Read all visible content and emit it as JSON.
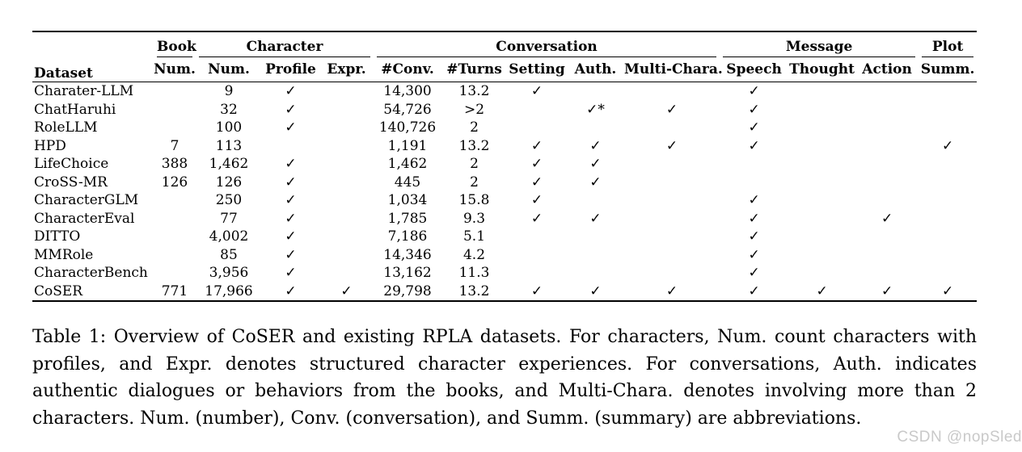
{
  "table": {
    "corner_header": "Dataset",
    "group_headers": [
      {
        "label": "Book",
        "span": 1
      },
      {
        "label": "Character",
        "span": 3
      },
      {
        "label": "Conversation",
        "span": 5
      },
      {
        "label": "Message",
        "span": 3
      },
      {
        "label": "Plot",
        "span": 1
      }
    ],
    "sub_headers": [
      "Num.",
      "Num.",
      "Profile",
      "Expr.",
      "#Conv.",
      "#Turns",
      "Setting",
      "Auth.",
      "Multi-Chara.",
      "Speech",
      "Thought",
      "Action",
      "Summ."
    ],
    "check_glyph": "✓",
    "rows": [
      {
        "name": "Charater-LLM",
        "cells": [
          "",
          "9",
          "✓",
          "",
          "14,300",
          "13.2",
          "✓",
          "",
          "",
          "✓",
          "",
          "",
          ""
        ]
      },
      {
        "name": "ChatHaruhi",
        "cells": [
          "",
          "32",
          "✓",
          "",
          "54,726",
          ">2",
          "",
          "✓*",
          "✓",
          "✓",
          "",
          "",
          ""
        ]
      },
      {
        "name": "RoleLLM",
        "cells": [
          "",
          "100",
          "✓",
          "",
          "140,726",
          "2",
          "",
          "",
          "",
          "✓",
          "",
          "",
          ""
        ]
      },
      {
        "name": "HPD",
        "cells": [
          "7",
          "113",
          "",
          "",
          "1,191",
          "13.2",
          "✓",
          "✓",
          "✓",
          "✓",
          "",
          "",
          "✓"
        ]
      },
      {
        "name": "LifeChoice",
        "cells": [
          "388",
          "1,462",
          "✓",
          "",
          "1,462",
          "2",
          "✓",
          "✓",
          "",
          "",
          "",
          "",
          ""
        ]
      },
      {
        "name": "CroSS-MR",
        "cells": [
          "126",
          "126",
          "✓",
          "",
          "445",
          "2",
          "✓",
          "✓",
          "",
          "",
          "",
          "",
          ""
        ]
      },
      {
        "name": "CharacterGLM",
        "cells": [
          "",
          "250",
          "✓",
          "",
          "1,034",
          "15.8",
          "✓",
          "",
          "",
          "✓",
          "",
          "",
          ""
        ]
      },
      {
        "name": "CharacterEval",
        "cells": [
          "",
          "77",
          "✓",
          "",
          "1,785",
          "9.3",
          "✓",
          "✓",
          "",
          "✓",
          "",
          "✓",
          ""
        ]
      },
      {
        "name": "DITTO",
        "cells": [
          "",
          "4,002",
          "✓",
          "",
          "7,186",
          "5.1",
          "",
          "",
          "",
          "✓",
          "",
          "",
          ""
        ]
      },
      {
        "name": "MMRole",
        "cells": [
          "",
          "85",
          "✓",
          "",
          "14,346",
          "4.2",
          "",
          "",
          "",
          "✓",
          "",
          "",
          ""
        ]
      },
      {
        "name": "CharacterBench",
        "cells": [
          "",
          "3,956",
          "✓",
          "",
          "13,162",
          "11.3",
          "",
          "",
          "",
          "✓",
          "",
          "",
          ""
        ]
      },
      {
        "name": "CoSER",
        "cells": [
          "771",
          "17,966",
          "✓",
          "✓",
          "29,798",
          "13.2",
          "✓",
          "✓",
          "✓",
          "✓",
          "✓",
          "✓",
          "✓"
        ]
      }
    ]
  },
  "caption": "Table 1: Overview of CoSER and existing RPLA datasets. For characters, Num. count characters with profiles, and Expr. denotes structured character experiences. For conversations, Auth. indicates authentic dialogues or behaviors from the books, and Multi-Chara. denotes involving more than 2 characters. Num. (number), Conv. (conversation), and Summ. (summary) are abbreviations.",
  "watermark": "CSDN @nopSled"
}
